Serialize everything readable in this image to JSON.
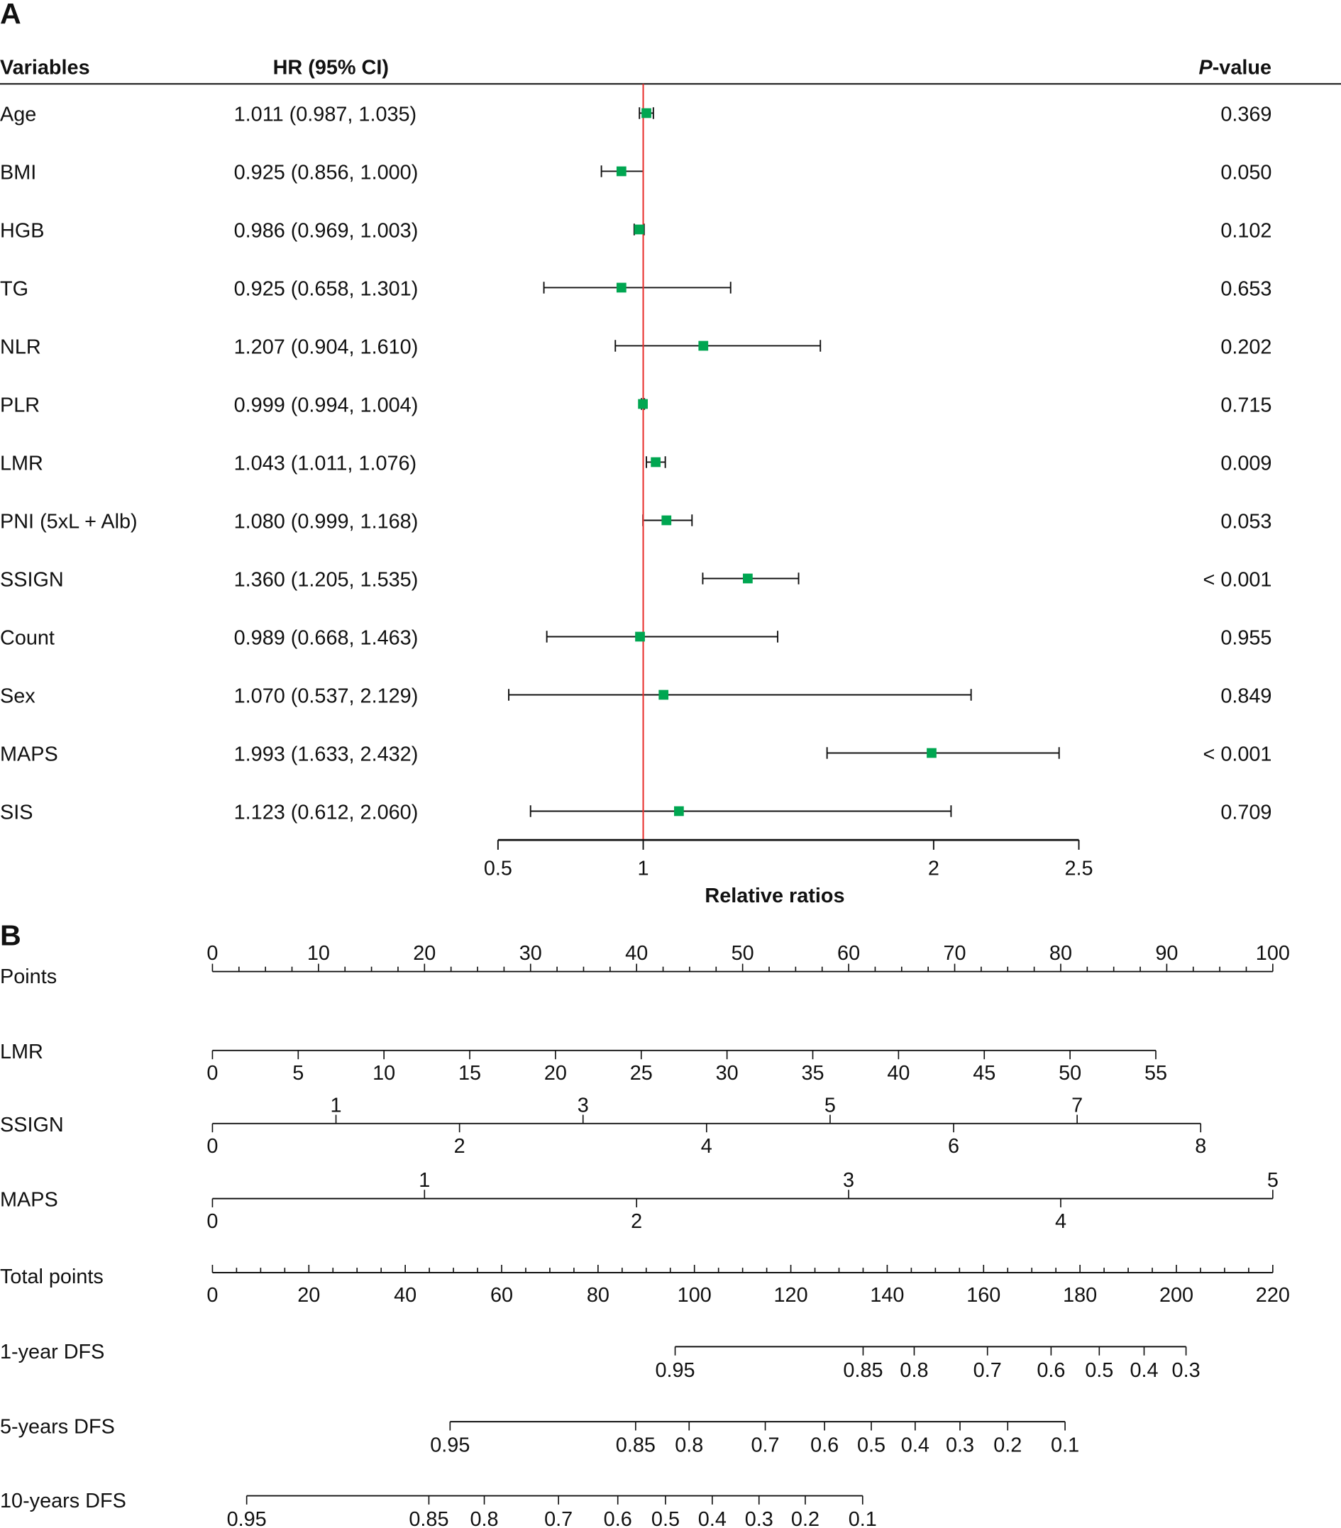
{
  "chart_data": [
    {
      "type": "forest",
      "panel_label": "A",
      "headers": {
        "variables": "Variables",
        "hr": "HR (95% CI)",
        "p_prefix": "P",
        "p_suffix": "-value"
      },
      "xlabel": "Relative ratios",
      "xticks": [
        0.5,
        1,
        2,
        2.5
      ],
      "xlim": [
        0.5,
        2.5
      ],
      "reference_line": 1,
      "colors": {
        "point": "#00a651",
        "reference": "#e8312f",
        "line": "#111111"
      },
      "rows": [
        {
          "name": "Age",
          "hr_ci": "1.011 (0.987, 1.035)",
          "hr": 1.011,
          "lo": 0.987,
          "hi": 1.035,
          "p": "0.369"
        },
        {
          "name": "BMI",
          "hr_ci": "0.925 (0.856, 1.000)",
          "hr": 0.925,
          "lo": 0.856,
          "hi": 1.0,
          "p": "0.050"
        },
        {
          "name": "HGB",
          "hr_ci": "0.986 (0.969, 1.003)",
          "hr": 0.986,
          "lo": 0.969,
          "hi": 1.003,
          "p": "0.102"
        },
        {
          "name": "TG",
          "hr_ci": "0.925 (0.658, 1.301)",
          "hr": 0.925,
          "lo": 0.658,
          "hi": 1.301,
          "p": "0.653"
        },
        {
          "name": "NLR",
          "hr_ci": "1.207 (0.904, 1.610)",
          "hr": 1.207,
          "lo": 0.904,
          "hi": 1.61,
          "p": "0.202"
        },
        {
          "name": "PLR",
          "hr_ci": "0.999 (0.994, 1.004)",
          "hr": 0.999,
          "lo": 0.994,
          "hi": 1.004,
          "p": "0.715"
        },
        {
          "name": "LMR",
          "hr_ci": "1.043 (1.011, 1.076)",
          "hr": 1.043,
          "lo": 1.011,
          "hi": 1.076,
          "p": "0.009"
        },
        {
          "name": "PNI (5xL + Alb)",
          "hr_ci": "1.080 (0.999, 1.168)",
          "hr": 1.08,
          "lo": 0.999,
          "hi": 1.168,
          "p": "0.053"
        },
        {
          "name": "SSIGN",
          "hr_ci": "1.360 (1.205, 1.535)",
          "hr": 1.36,
          "lo": 1.205,
          "hi": 1.535,
          "p": "< 0.001"
        },
        {
          "name": "Count",
          "hr_ci": "0.989 (0.668, 1.463)",
          "hr": 0.989,
          "lo": 0.668,
          "hi": 1.463,
          "p": "0.955"
        },
        {
          "name": "Sex",
          "hr_ci": "1.070 (0.537, 2.129)",
          "hr": 1.07,
          "lo": 0.537,
          "hi": 2.129,
          "p": "0.849"
        },
        {
          "name": "MAPS",
          "hr_ci": "1.993 (1.633, 2.432)",
          "hr": 1.993,
          "lo": 1.633,
          "hi": 2.432,
          "p": "< 0.001"
        },
        {
          "name": "SIS",
          "hr_ci": "1.123 (0.612, 2.060)",
          "hr": 1.123,
          "lo": 0.612,
          "hi": 2.06,
          "p": "0.709"
        }
      ]
    },
    {
      "type": "nomogram",
      "panel_label": "B",
      "points": {
        "label": "Points",
        "range": [
          0,
          100
        ],
        "labels": [
          0,
          10,
          20,
          30,
          40,
          50,
          60,
          70,
          80,
          90,
          100
        ],
        "minor_step": 2.5
      },
      "variables": [
        {
          "name": "LMR",
          "max": 55,
          "points_per_unit": 1.6176,
          "below": [
            0,
            5,
            10,
            15,
            20,
            25,
            30,
            35,
            40,
            45,
            50,
            55
          ],
          "above": []
        },
        {
          "name": "SSIGN",
          "max": 8,
          "points_per_unit": 11.65,
          "below": [
            0,
            2,
            4,
            6,
            8
          ],
          "above": [
            1,
            3,
            5,
            7
          ]
        },
        {
          "name": "MAPS",
          "max": 5,
          "points_per_unit": 20,
          "below": [
            0,
            2,
            4
          ],
          "above": [
            1,
            3,
            5
          ]
        }
      ],
      "total_points": {
        "label": "Total points",
        "range": [
          0,
          220
        ],
        "labels": [
          0,
          20,
          40,
          60,
          80,
          100,
          120,
          140,
          160,
          180,
          200,
          220
        ],
        "minor_step": 5
      },
      "outcomes": [
        {
          "name": "1-year DFS",
          "ticks": [
            {
              "p": "0.95",
              "tp": 96
            },
            {
              "p": "0.85",
              "tp": 135
            },
            {
              "p": "0.8",
              "tp": 145.6
            },
            {
              "p": "0.7",
              "tp": 160.8
            },
            {
              "p": "0.6",
              "tp": 174
            },
            {
              "p": "0.5",
              "tp": 184
            },
            {
              "p": "0.4",
              "tp": 193.3
            },
            {
              "p": "0.3",
              "tp": 202
            }
          ]
        },
        {
          "name": "5-years DFS",
          "ticks": [
            {
              "p": "0.95",
              "tp": 49.3
            },
            {
              "p": "0.85",
              "tp": 87.8
            },
            {
              "p": "0.8",
              "tp": 98.9
            },
            {
              "p": "0.7",
              "tp": 114.7
            },
            {
              "p": "0.6",
              "tp": 127
            },
            {
              "p": "0.5",
              "tp": 136.7
            },
            {
              "p": "0.4",
              "tp": 145.8
            },
            {
              "p": "0.3",
              "tp": 155.1
            },
            {
              "p": "0.2",
              "tp": 165
            },
            {
              "p": "0.1",
              "tp": 176.9
            }
          ]
        },
        {
          "name": "10-years DFS",
          "ticks": [
            {
              "p": "0.95",
              "tp": 7.1
            },
            {
              "p": "0.85",
              "tp": 44.9
            },
            {
              "p": "0.8",
              "tp": 56.4
            },
            {
              "p": "0.7",
              "tp": 71.8
            },
            {
              "p": "0.6",
              "tp": 84.1
            },
            {
              "p": "0.5",
              "tp": 94
            },
            {
              "p": "0.4",
              "tp": 103.7
            },
            {
              "p": "0.3",
              "tp": 113.4
            },
            {
              "p": "0.2",
              "tp": 123
            },
            {
              "p": "0.1",
              "tp": 134.9
            }
          ]
        }
      ]
    }
  ]
}
